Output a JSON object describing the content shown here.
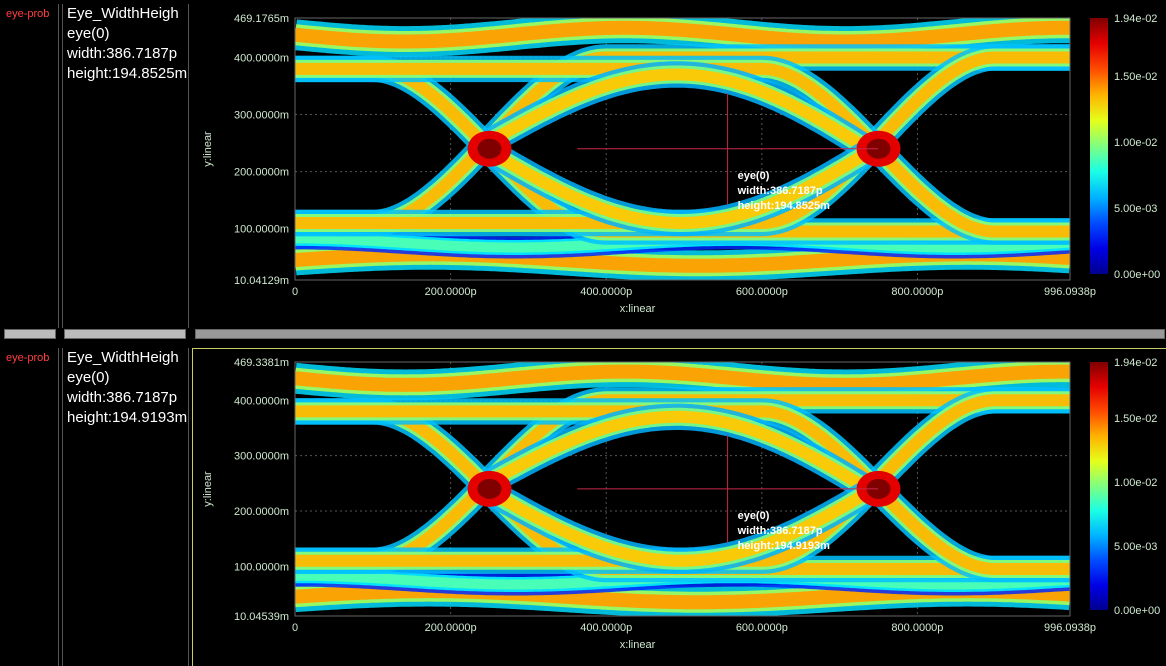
{
  "panels": [
    {
      "probe": "eye-prob",
      "info": {
        "title": "Eye_WidthHeigh",
        "eye": "eye(0)",
        "width": "width:386.7187p",
        "height": "height:194.8525m"
      },
      "annotation": [
        "eye(0)",
        "width:386.7187p",
        "height:194.8525m"
      ]
    },
    {
      "probe": "eye-prob",
      "info": {
        "title": "Eye_WidthHeigh",
        "eye": "eye(0)",
        "width": "width:386.7187p",
        "height": "height:194.9193m"
      },
      "annotation": [
        "eye(0)",
        "width:386.7187p",
        "height:194.9193m"
      ]
    }
  ],
  "colors": {
    "axis_text": "#cfe8cf",
    "crosshair": "#c8284a"
  },
  "chart_data": [
    {
      "type": "heatmap",
      "xlabel": "x:linear",
      "ylabel": "y:linear",
      "xlim": [
        0,
        996.0938
      ],
      "ylim": [
        10.04129,
        469.1765
      ],
      "x_ticks": [
        0,
        200,
        400,
        600,
        800,
        996.0938
      ],
      "x_tick_labels": [
        "0",
        "200.0000p",
        "400.0000p",
        "600.0000p",
        "800.0000p",
        "996.0938p"
      ],
      "y_ticks": [
        10.04129,
        100,
        200,
        300,
        400,
        469.1765
      ],
      "y_tick_labels": [
        "10.04129m",
        "100.0000m",
        "200.0000m",
        "300.0000m",
        "400.0000m",
        "469.1765m"
      ],
      "colorbar": {
        "min": 0,
        "max": 0.0194,
        "tick_labels": [
          "1.94e-02",
          "1.50e-02",
          "1.00e-02",
          "5.00e-03",
          "0.00e+00"
        ],
        "tick_values": [
          0.0194,
          0.015,
          0.01,
          0.005,
          0
        ]
      },
      "eye": {
        "width": 386.7187,
        "height": 194.8525,
        "x_center": 556,
        "y_center": 240
      },
      "grid": true
    },
    {
      "type": "heatmap",
      "xlabel": "x:linear",
      "ylabel": "y:linear",
      "xlim": [
        0,
        996.0938
      ],
      "ylim": [
        10.04539,
        469.3381
      ],
      "x_ticks": [
        0,
        200,
        400,
        600,
        800,
        996.0938
      ],
      "x_tick_labels": [
        "0",
        "200.0000p",
        "400.0000p",
        "600.0000p",
        "800.0000p",
        "996.0938p"
      ],
      "y_ticks": [
        10.04539,
        100,
        200,
        300,
        400,
        469.3381
      ],
      "y_tick_labels": [
        "10.04539m",
        "100.0000m",
        "200.0000m",
        "300.0000m",
        "400.0000m",
        "469.3381m"
      ],
      "colorbar": {
        "min": 0,
        "max": 0.0194,
        "tick_labels": [
          "1.94e-02",
          "1.50e-02",
          "1.00e-02",
          "5.00e-03",
          "0.00e+00"
        ],
        "tick_values": [
          0.0194,
          0.015,
          0.01,
          0.005,
          0
        ]
      },
      "eye": {
        "width": 386.7187,
        "height": 194.9193,
        "x_center": 556,
        "y_center": 240
      },
      "grid": true
    }
  ]
}
